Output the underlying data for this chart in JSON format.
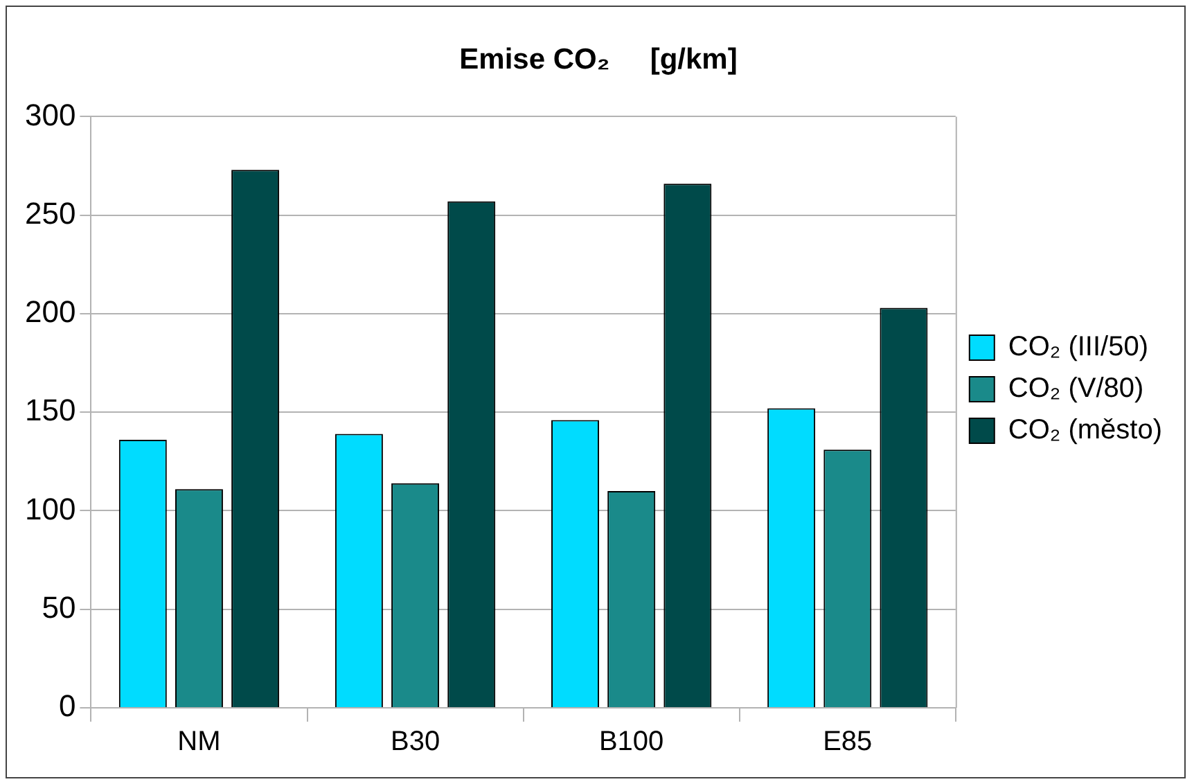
{
  "chart_data": {
    "type": "bar",
    "title": "Emise CO₂     [g/km]",
    "categories": [
      "NM",
      "B30",
      "B100",
      "E85"
    ],
    "series": [
      {
        "name": "CO₂ (III/50)",
        "color": "#00dcff",
        "values": [
          136,
          139,
          146,
          152
        ]
      },
      {
        "name": "CO₂ (V/80)",
        "color": "#1a8a8a",
        "values": [
          111,
          114,
          110,
          131
        ]
      },
      {
        "name": "CO₂ (město)",
        "color": "#004a4a",
        "values": [
          273,
          257,
          266,
          203
        ]
      }
    ],
    "ylim": [
      0,
      300
    ],
    "yticks": [
      0,
      50,
      100,
      150,
      200,
      250,
      300
    ],
    "grid": "y",
    "legend": "right"
  }
}
